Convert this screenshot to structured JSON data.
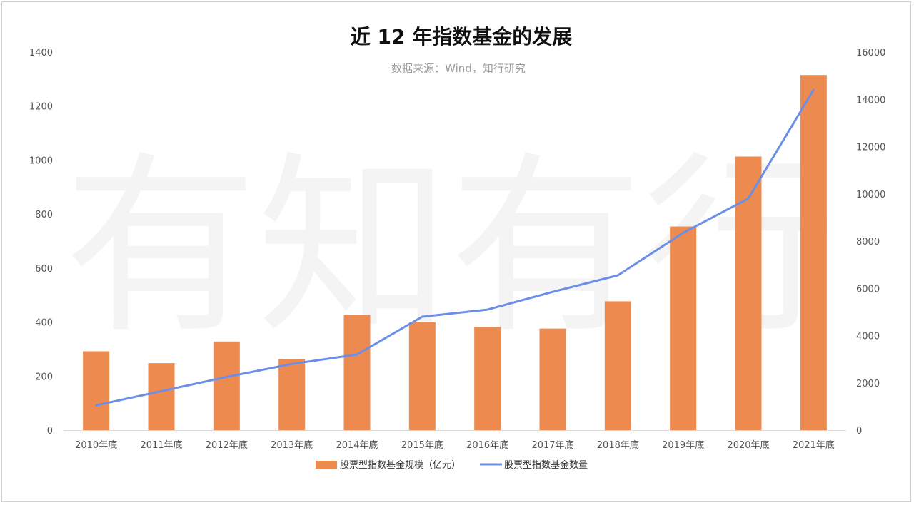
{
  "chart_data": {
    "type": "bar",
    "title": "近 12 年指数基金的发展",
    "subtitle": "数据来源：Wind，知行研究",
    "watermark": "有知有行",
    "categories": [
      "2010年底",
      "2011年底",
      "2012年底",
      "2013年底",
      "2014年底",
      "2015年底",
      "2016年底",
      "2017年底",
      "2018年底",
      "2019年底",
      "2020年底",
      "2021年底"
    ],
    "series": [
      {
        "name": "股票型指数基金规模（亿元）",
        "type": "bar",
        "axis": "left",
        "color": "#ED8A4F",
        "values": [
          292,
          248,
          328,
          263,
          427,
          399,
          382,
          376,
          477,
          754,
          1013,
          1315
        ]
      },
      {
        "name": "股票型指数基金数量",
        "type": "line",
        "axis": "right",
        "color": "#6B8FE8",
        "values": [
          1050,
          1650,
          2250,
          2800,
          3200,
          4800,
          5100,
          5850,
          6550,
          8350,
          9800,
          14400
        ]
      }
    ],
    "y_left": {
      "min": 0,
      "max": 1400,
      "ticks": [
        "0",
        "200",
        "400",
        "600",
        "800",
        "1000",
        "1200",
        "1400"
      ]
    },
    "y_right": {
      "min": 0,
      "max": 16000,
      "ticks": [
        "0",
        "2000",
        "4000",
        "6000",
        "8000",
        "10000",
        "12000",
        "14000",
        "16000"
      ]
    },
    "legend_position": "bottom-center",
    "grid": false
  }
}
